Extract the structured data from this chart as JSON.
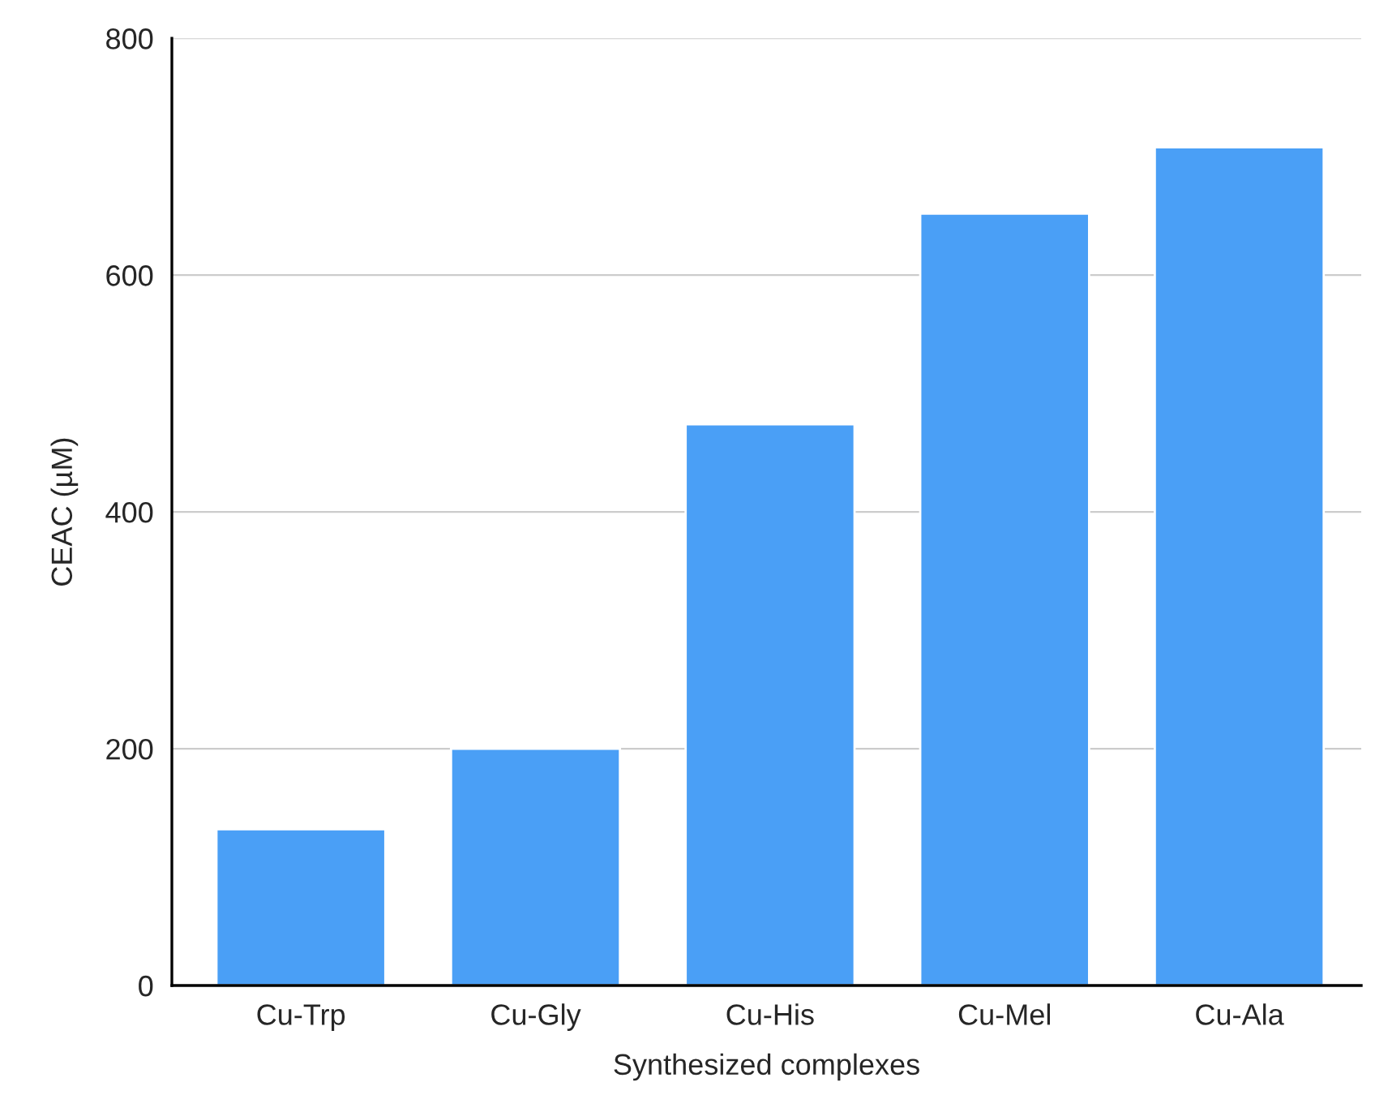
{
  "chart_data": {
    "type": "bar",
    "categories": [
      "Cu-Trp",
      "Cu-Gly",
      "Cu-His",
      "Cu-Mel",
      "Cu-Ala"
    ],
    "values": [
      132,
      200,
      474,
      652,
      708
    ],
    "color": "#4a9ff6",
    "xlabel": "Synthesized complexes",
    "ylabel": "CEAC (µM)",
    "ylim": [
      0,
      800
    ],
    "yticks": [
      0,
      200,
      400,
      600,
      800
    ],
    "grid": "y"
  }
}
